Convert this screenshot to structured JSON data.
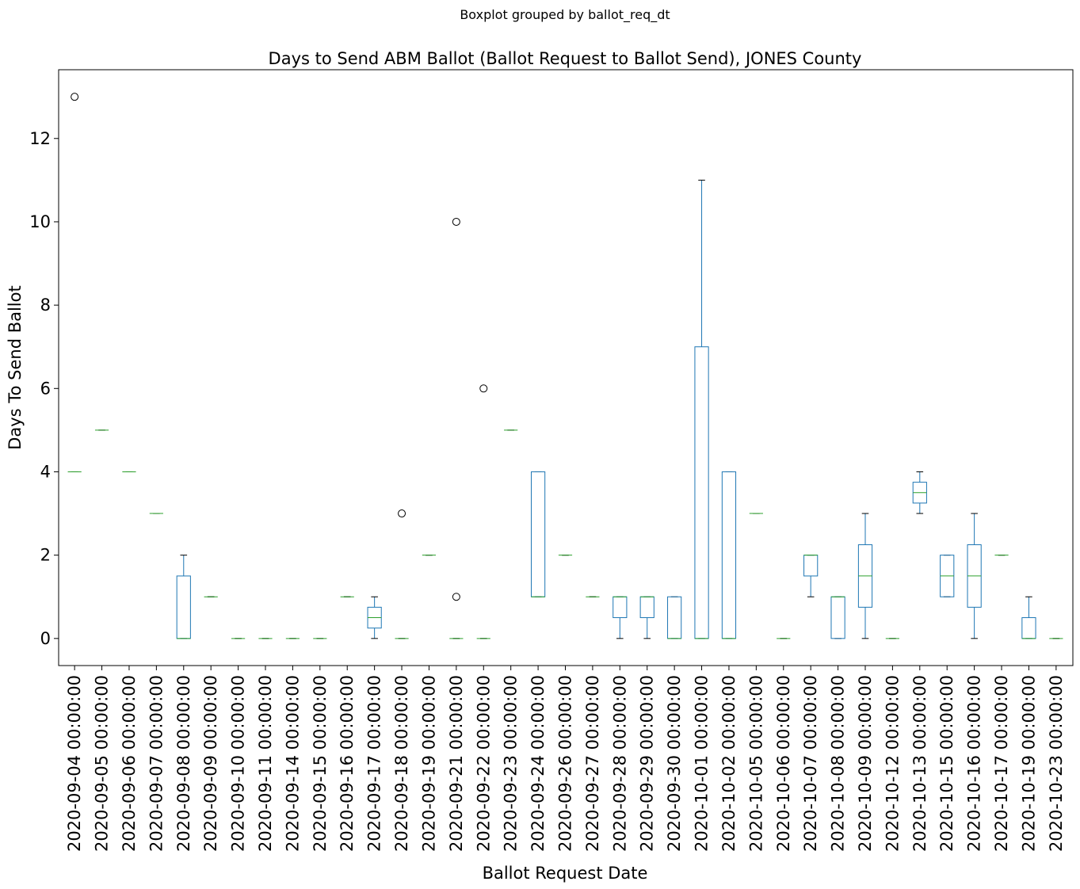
{
  "suptitle": "Boxplot grouped by ballot_req_dt",
  "chart_data": {
    "type": "boxplot",
    "title": "Days to Send ABM Ballot (Ballot Request to Ballot Send), JONES County",
    "xlabel": "Ballot Request Date",
    "ylabel": "Days To Send Ballot",
    "ylim": [
      -0.65,
      13.65
    ],
    "yticks": [
      0,
      2,
      4,
      6,
      8,
      10,
      12
    ],
    "grid": false,
    "colors": {
      "box": "#1f77b4",
      "median": "#2ca02c",
      "whisker": "#1f77b4",
      "cap": "#000000",
      "flier": "#000000"
    },
    "categories": [
      "2020-09-04 00:00:00",
      "2020-09-05 00:00:00",
      "2020-09-06 00:00:00",
      "2020-09-07 00:00:00",
      "2020-09-08 00:00:00",
      "2020-09-09 00:00:00",
      "2020-09-10 00:00:00",
      "2020-09-11 00:00:00",
      "2020-09-14 00:00:00",
      "2020-09-15 00:00:00",
      "2020-09-16 00:00:00",
      "2020-09-17 00:00:00",
      "2020-09-18 00:00:00",
      "2020-09-19 00:00:00",
      "2020-09-21 00:00:00",
      "2020-09-22 00:00:00",
      "2020-09-23 00:00:00",
      "2020-09-24 00:00:00",
      "2020-09-26 00:00:00",
      "2020-09-27 00:00:00",
      "2020-09-28 00:00:00",
      "2020-09-29 00:00:00",
      "2020-09-30 00:00:00",
      "2020-10-01 00:00:00",
      "2020-10-02 00:00:00",
      "2020-10-05 00:00:00",
      "2020-10-06 00:00:00",
      "2020-10-07 00:00:00",
      "2020-10-08 00:00:00",
      "2020-10-09 00:00:00",
      "2020-10-12 00:00:00",
      "2020-10-13 00:00:00",
      "2020-10-15 00:00:00",
      "2020-10-16 00:00:00",
      "2020-10-17 00:00:00",
      "2020-10-19 00:00:00",
      "2020-10-23 00:00:00"
    ],
    "boxes": [
      {
        "whislo": 4,
        "q1": 4,
        "med": 4,
        "q3": 4,
        "whishi": 4,
        "fliers": [
          13
        ]
      },
      {
        "whislo": 5,
        "q1": 5,
        "med": 5,
        "q3": 5,
        "whishi": 5,
        "fliers": []
      },
      {
        "whislo": 4,
        "q1": 4,
        "med": 4,
        "q3": 4,
        "whishi": 4,
        "fliers": []
      },
      {
        "whislo": 3,
        "q1": 3,
        "med": 3,
        "q3": 3,
        "whishi": 3,
        "fliers": []
      },
      {
        "whislo": 0,
        "q1": 0,
        "med": 0,
        "q3": 1.5,
        "whishi": 2,
        "fliers": []
      },
      {
        "whislo": 1,
        "q1": 1,
        "med": 1,
        "q3": 1,
        "whishi": 1,
        "fliers": []
      },
      {
        "whislo": 0,
        "q1": 0,
        "med": 0,
        "q3": 0,
        "whishi": 0,
        "fliers": []
      },
      {
        "whislo": 0,
        "q1": 0,
        "med": 0,
        "q3": 0,
        "whishi": 0,
        "fliers": []
      },
      {
        "whislo": 0,
        "q1": 0,
        "med": 0,
        "q3": 0,
        "whishi": 0,
        "fliers": []
      },
      {
        "whislo": 0,
        "q1": 0,
        "med": 0,
        "q3": 0,
        "whishi": 0,
        "fliers": []
      },
      {
        "whislo": 1,
        "q1": 1,
        "med": 1,
        "q3": 1,
        "whishi": 1,
        "fliers": []
      },
      {
        "whislo": 0,
        "q1": 0.25,
        "med": 0.5,
        "q3": 0.75,
        "whishi": 1,
        "fliers": []
      },
      {
        "whislo": 0,
        "q1": 0,
        "med": 0,
        "q3": 0,
        "whishi": 0,
        "fliers": [
          3
        ]
      },
      {
        "whislo": 2,
        "q1": 2,
        "med": 2,
        "q3": 2,
        "whishi": 2,
        "fliers": []
      },
      {
        "whislo": 0,
        "q1": 0,
        "med": 0,
        "q3": 0,
        "whishi": 0,
        "fliers": [
          10,
          1
        ]
      },
      {
        "whislo": 0,
        "q1": 0,
        "med": 0,
        "q3": 0,
        "whishi": 0,
        "fliers": [
          6
        ]
      },
      {
        "whislo": 5,
        "q1": 5,
        "med": 5,
        "q3": 5,
        "whishi": 5,
        "fliers": []
      },
      {
        "whislo": 1,
        "q1": 1,
        "med": 1,
        "q3": 4,
        "whishi": 4,
        "fliers": []
      },
      {
        "whislo": 2,
        "q1": 2,
        "med": 2,
        "q3": 2,
        "whishi": 2,
        "fliers": []
      },
      {
        "whislo": 1,
        "q1": 1,
        "med": 1,
        "q3": 1,
        "whishi": 1,
        "fliers": []
      },
      {
        "whislo": 0,
        "q1": 0.5,
        "med": 1,
        "q3": 1,
        "whishi": 1,
        "fliers": []
      },
      {
        "whislo": 0,
        "q1": 0.5,
        "med": 1,
        "q3": 1,
        "whishi": 1,
        "fliers": []
      },
      {
        "whislo": 0,
        "q1": 0,
        "med": 0,
        "q3": 1,
        "whishi": 1,
        "fliers": []
      },
      {
        "whislo": 0,
        "q1": 0,
        "med": 0,
        "q3": 7,
        "whishi": 11,
        "fliers": []
      },
      {
        "whislo": 0,
        "q1": 0,
        "med": 0,
        "q3": 4,
        "whishi": 4,
        "fliers": []
      },
      {
        "whislo": 3,
        "q1": 3,
        "med": 3,
        "q3": 3,
        "whishi": 3,
        "fliers": []
      },
      {
        "whislo": 0,
        "q1": 0,
        "med": 0,
        "q3": 0,
        "whishi": 0,
        "fliers": []
      },
      {
        "whislo": 1,
        "q1": 1.5,
        "med": 2,
        "q3": 2,
        "whishi": 2,
        "fliers": []
      },
      {
        "whislo": 0,
        "q1": 0,
        "med": 1,
        "q3": 1,
        "whishi": 1,
        "fliers": []
      },
      {
        "whislo": 0,
        "q1": 0.75,
        "med": 1.5,
        "q3": 2.25,
        "whishi": 3,
        "fliers": []
      },
      {
        "whislo": 0,
        "q1": 0,
        "med": 0,
        "q3": 0,
        "whishi": 0,
        "fliers": []
      },
      {
        "whislo": 3,
        "q1": 3.25,
        "med": 3.5,
        "q3": 3.75,
        "whishi": 4,
        "fliers": []
      },
      {
        "whislo": 1,
        "q1": 1,
        "med": 1.5,
        "q3": 2,
        "whishi": 2,
        "fliers": []
      },
      {
        "whislo": 0,
        "q1": 0.75,
        "med": 1.5,
        "q3": 2.25,
        "whishi": 3,
        "fliers": []
      },
      {
        "whislo": 2,
        "q1": 2,
        "med": 2,
        "q3": 2,
        "whishi": 2,
        "fliers": []
      },
      {
        "whislo": 0,
        "q1": 0,
        "med": 0,
        "q3": 0.5,
        "whishi": 1,
        "fliers": []
      },
      {
        "whislo": 0,
        "q1": 0,
        "med": 0,
        "q3": 0,
        "whishi": 0,
        "fliers": []
      }
    ]
  }
}
